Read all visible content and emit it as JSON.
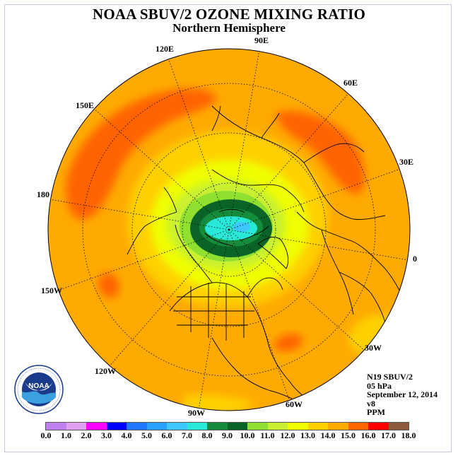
{
  "header": {
    "title": "NOAA SBUV/2 OZONE MIXING RATIO",
    "subtitle": "Northern Hemisphere"
  },
  "longitude_labels": {
    "lon_120e": "120E",
    "lon_90e": "90E",
    "lon_60e": "60E",
    "lon_150e": "150E",
    "lon_30e": "30E",
    "lon_180": "180",
    "lon_0": "0",
    "lon_150w": "150W",
    "lon_30w": "30W",
    "lon_120w": "120W",
    "lon_60w": "60W",
    "lon_90w": "90W"
  },
  "info": {
    "satellite": "N19 SBUV/2",
    "level": "05 hPa",
    "date": "September 12, 2014",
    "version": "v8",
    "units": "PPM"
  },
  "logo": {
    "text": "NOAA",
    "icon": "noaa-logo-icon"
  },
  "colorbar": {
    "ticks": [
      "0.0",
      "1.0",
      "2.0",
      "3.0",
      "4.0",
      "5.0",
      "6.0",
      "7.0",
      "8.0",
      "9.0",
      "10.0",
      "11.0",
      "12.0",
      "13.0",
      "14.0",
      "15.0",
      "16.0",
      "17.0",
      "18.0"
    ],
    "colors": [
      "#c080f0",
      "#e0a0f0",
      "#ff00ff",
      "#0000ff",
      "#1e78ff",
      "#28a0ff",
      "#3cc8ff",
      "#28e8d8",
      "#148c3c",
      "#0a6428",
      "#90e030",
      "#c8f030",
      "#f0ff00",
      "#ffd000",
      "#ffaa00",
      "#ff6400",
      "#ff0000",
      "#8c5a3c"
    ]
  },
  "field_colors": {
    "background_orange": "#ffaa00",
    "dark_orange": "#ff6400",
    "yellow_orange": "#ffd000",
    "yellow": "#f0ff00",
    "lime": "#c8f030",
    "green": "#90e030",
    "dark_green": "#0a6428",
    "mid_green": "#148c3c",
    "cyan": "#28e8d8",
    "light_blue": "#3cc8ff"
  }
}
